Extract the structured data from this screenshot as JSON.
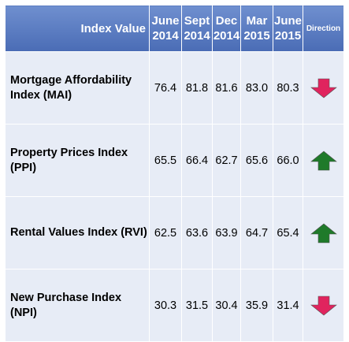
{
  "header": {
    "index_label": "Index Value",
    "periods": [
      {
        "line1": "June",
        "line2": "2014"
      },
      {
        "line1": "Sept",
        "line2": "2014"
      },
      {
        "line1": "Dec",
        "line2": "2014"
      },
      {
        "line1": "Mar",
        "line2": "2015"
      },
      {
        "line1": "June",
        "line2": "2015"
      }
    ],
    "direction_label": "Direction"
  },
  "rows": [
    {
      "name": "Mortgage Affordability Index (MAI)",
      "values": [
        "76.4",
        "81.8",
        "81.6",
        "83.0",
        "80.3"
      ],
      "direction": "down"
    },
    {
      "name": "Property Prices Index (PPI)",
      "values": [
        "65.5",
        "66.4",
        "62.7",
        "65.6",
        "66.0"
      ],
      "direction": "up"
    },
    {
      "name": "Rental Values Index (RVI)",
      "values": [
        "62.5",
        "63.6",
        "63.9",
        "64.7",
        "65.4"
      ],
      "direction": "up"
    },
    {
      "name": "New Purchase Index (NPI)",
      "values": [
        "30.3",
        "31.5",
        "30.4",
        "35.9",
        "31.4"
      ],
      "direction": "down"
    }
  ],
  "colors": {
    "header_bg": "#4a6cb5",
    "row_bg": "#e7ecf6",
    "arrow_up": "#1f7a2a",
    "arrow_down": "#e0245e"
  }
}
